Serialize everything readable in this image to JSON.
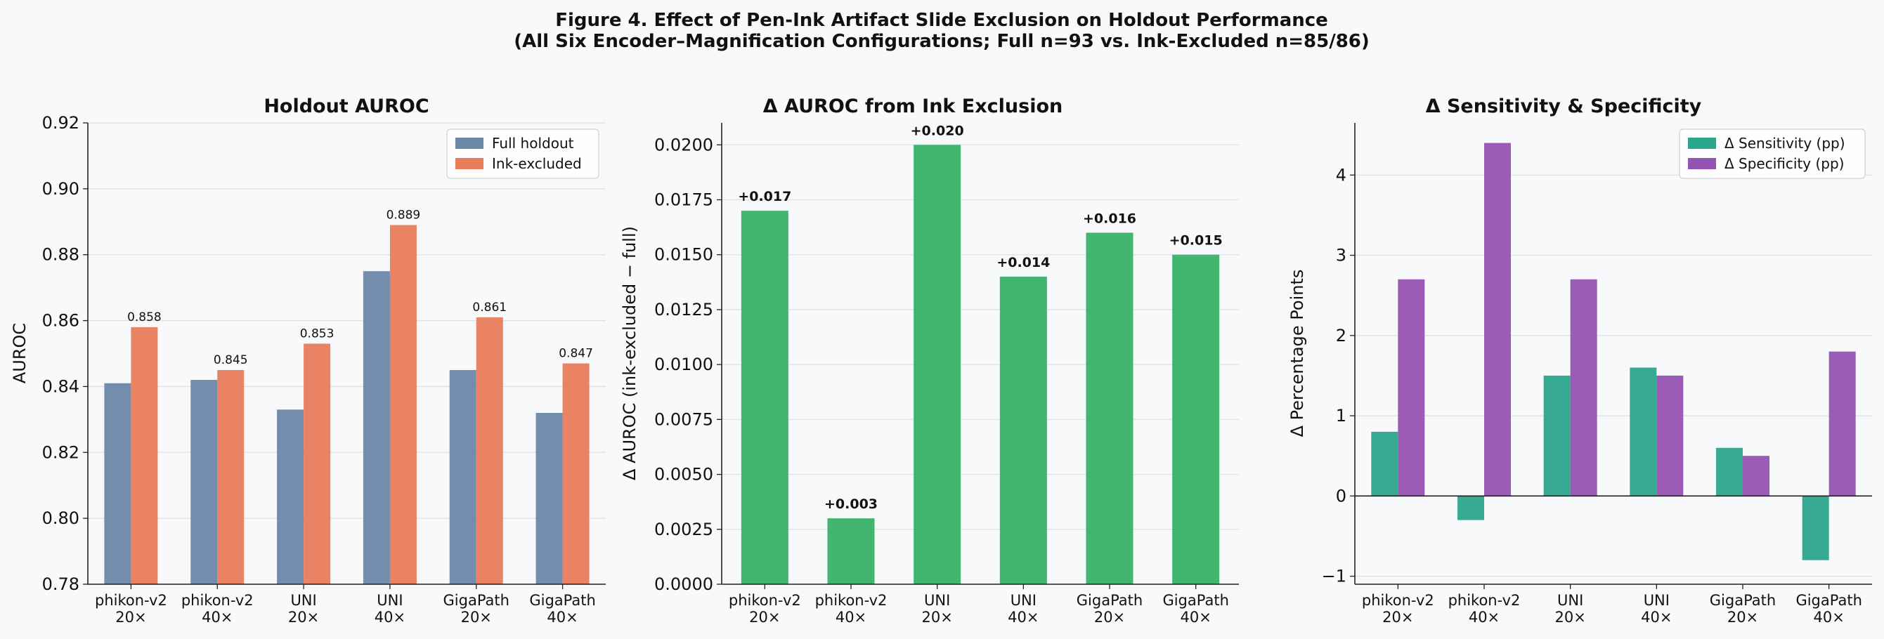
{
  "figure": {
    "title_line1": "Figure 4. Effect of Pen-Ink Artifact Slide Exclusion on Holdout Performance",
    "title_line2": "(All Six Encoder–Magnification Configurations; Full n=93 vs. Ink-Excluded n=85/86)"
  },
  "colors": {
    "full": "#6b87a8",
    "ink": "#e87c5b",
    "delta_auroc": "#3cb36a",
    "sens": "#2ca58d",
    "spec": "#9553b3"
  },
  "chart_data": [
    {
      "type": "bar",
      "title": "Holdout AUROC",
      "ylabel": "AUROC",
      "xlabel": "",
      "categories": [
        [
          "phikon-v2",
          "20×"
        ],
        [
          "phikon-v2",
          "40×"
        ],
        [
          "UNI",
          "20×"
        ],
        [
          "UNI",
          "40×"
        ],
        [
          "GigaPath",
          "20×"
        ],
        [
          "GigaPath",
          "40×"
        ]
      ],
      "series": [
        {
          "name": "Full holdout",
          "values": [
            0.841,
            0.842,
            0.833,
            0.875,
            0.845,
            0.832
          ]
        },
        {
          "name": "Ink-excluded",
          "values": [
            0.858,
            0.845,
            0.853,
            0.889,
            0.861,
            0.847
          ]
        }
      ],
      "data_labels": [
        "0.858",
        "0.845",
        "0.853",
        "0.889",
        "0.861",
        "0.847"
      ],
      "ylim": [
        0.78,
        0.92
      ],
      "yticks": [
        "0.78",
        "0.80",
        "0.82",
        "0.84",
        "0.86",
        "0.88",
        "0.90",
        "0.92"
      ],
      "grid": true,
      "legend": "top-right"
    },
    {
      "type": "bar",
      "title": "Δ AUROC from Ink Exclusion",
      "ylabel": "Δ AUROC (ink-excluded − full)",
      "xlabel": "",
      "categories": [
        [
          "phikon-v2",
          "20×"
        ],
        [
          "phikon-v2",
          "40×"
        ],
        [
          "UNI",
          "20×"
        ],
        [
          "UNI",
          "40×"
        ],
        [
          "GigaPath",
          "20×"
        ],
        [
          "GigaPath",
          "40×"
        ]
      ],
      "values": [
        0.017,
        0.003,
        0.02,
        0.014,
        0.016,
        0.015
      ],
      "data_labels": [
        "+0.017",
        "+0.003",
        "+0.020",
        "+0.014",
        "+0.016",
        "+0.015"
      ],
      "ylim": [
        0,
        0.021
      ],
      "yticks": [
        "0.0000",
        "0.0025",
        "0.0050",
        "0.0075",
        "0.0100",
        "0.0125",
        "0.0150",
        "0.0175",
        "0.0200"
      ],
      "grid": true
    },
    {
      "type": "bar",
      "title": "Δ Sensitivity & Specificity",
      "ylabel": "Δ Percentage Points",
      "xlabel": "",
      "categories": [
        [
          "phikon-v2",
          "20×"
        ],
        [
          "phikon-v2",
          "40×"
        ],
        [
          "UNI",
          "20×"
        ],
        [
          "UNI",
          "40×"
        ],
        [
          "GigaPath",
          "20×"
        ],
        [
          "GigaPath",
          "40×"
        ]
      ],
      "series": [
        {
          "name": "Δ Sensitivity (pp)",
          "values": [
            0.8,
            -0.3,
            1.5,
            1.6,
            0.6,
            -0.8
          ]
        },
        {
          "name": "Δ Specificity (pp)",
          "values": [
            2.7,
            4.4,
            2.7,
            1.5,
            0.5,
            1.8
          ]
        }
      ],
      "ylim": [
        -1.1,
        4.65
      ],
      "yticks": [
        "−1",
        "0",
        "1",
        "2",
        "3",
        "4"
      ],
      "grid": true,
      "legend": "top-right"
    }
  ]
}
